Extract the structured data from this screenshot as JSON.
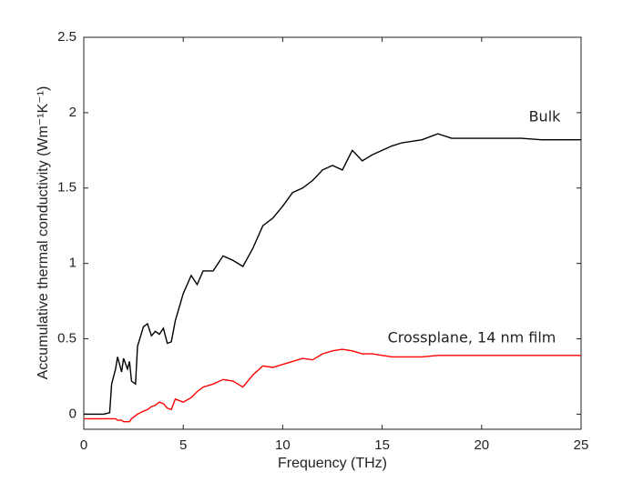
{
  "chart_data": {
    "type": "line",
    "x_label": "Frequency (THz)",
    "y_label": "Accumulative thermal conductivity (Wm⁻¹K⁻¹)",
    "annotations": [
      "Bulk",
      "Crossplane, 14 nm film"
    ],
    "x": [
      0,
      1,
      1.3,
      1.4,
      1.6,
      1.7,
      1.9,
      2,
      2.2,
      2.3,
      2.4,
      2.6,
      2.7,
      3,
      3.2,
      3.4,
      3.6,
      3.8,
      4,
      4.2,
      4.4,
      4.6,
      5,
      5.4,
      5.7,
      6,
      6.5,
      7,
      7.5,
      8,
      8.5,
      9,
      9.5,
      10,
      10.5,
      11,
      11.5,
      12,
      12.5,
      13,
      13.5,
      14,
      14.5,
      15,
      15.5,
      16,
      17,
      17.8,
      18.5,
      20,
      22,
      23,
      25
    ],
    "series": [
      {
        "color": "#000000",
        "values": [
          0,
          0,
          0.01,
          0.2,
          0.3,
          0.38,
          0.28,
          0.37,
          0.3,
          0.35,
          0.22,
          0.2,
          0.45,
          0.58,
          0.6,
          0.52,
          0.55,
          0.53,
          0.57,
          0.47,
          0.48,
          0.62,
          0.8,
          0.92,
          0.86,
          0.95,
          0.95,
          1.05,
          1.02,
          0.98,
          1.1,
          1.25,
          1.3,
          1.38,
          1.47,
          1.5,
          1.55,
          1.62,
          1.65,
          1.62,
          1.75,
          1.68,
          1.72,
          1.75,
          1.78,
          1.8,
          1.82,
          1.86,
          1.83,
          1.83,
          1.83,
          1.82,
          1.82
        ]
      },
      {
        "color": "#ff0000",
        "values": [
          -0.03,
          -0.03,
          -0.03,
          -0.03,
          -0.03,
          -0.04,
          -0.04,
          -0.05,
          -0.05,
          -0.05,
          -0.03,
          -0.01,
          0,
          0.02,
          0.03,
          0.05,
          0.06,
          0.08,
          0.07,
          0.04,
          0.03,
          0.1,
          0.08,
          0.11,
          0.15,
          0.18,
          0.2,
          0.23,
          0.22,
          0.18,
          0.26,
          0.32,
          0.31,
          0.33,
          0.35,
          0.37,
          0.36,
          0.4,
          0.42,
          0.43,
          0.42,
          0.4,
          0.4,
          0.39,
          0.38,
          0.38,
          0.38,
          0.39,
          0.39,
          0.39,
          0.39,
          0.39,
          0.39
        ]
      }
    ],
    "xlim": [
      0,
      25
    ],
    "xticks": [
      0,
      5,
      10,
      15,
      20,
      25
    ],
    "ylim": [
      -0.1,
      2.5
    ],
    "yticks": [
      0,
      0.5,
      1,
      1.5,
      2,
      2.5
    ],
    "grid": false
  }
}
